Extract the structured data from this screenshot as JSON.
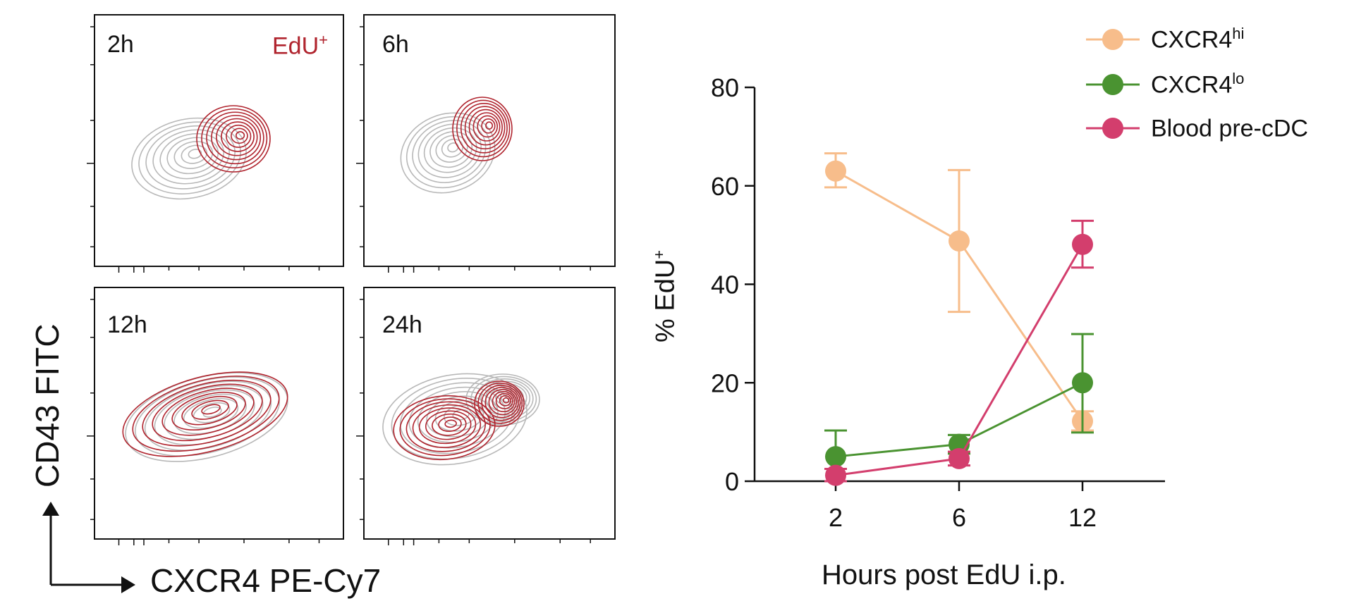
{
  "flow": {
    "panels": [
      {
        "label": "2h",
        "edu_label": "EdU+"
      },
      {
        "label": "6h",
        "edu_label": ""
      },
      {
        "label": "12h",
        "edu_label": ""
      },
      {
        "label": "24h",
        "edu_label": ""
      }
    ],
    "y_axis_title": "CD43 FITC",
    "x_axis_title": "CXCR4 PE-Cy7",
    "colors": {
      "gray_population": "#b8b8b8",
      "edu_population": "#b0242e"
    }
  },
  "chart_data": {
    "type": "line",
    "x": [
      2,
      6,
      12
    ],
    "x_tick_labels": [
      "2",
      "6",
      "12"
    ],
    "xlabel": "Hours post EdU i.p.",
    "ylabel": "% EdU",
    "ylabel_superscript": "+",
    "ylim": [
      0,
      80
    ],
    "y_ticks": [
      0,
      20,
      40,
      60,
      80
    ],
    "legend_position": "top-right",
    "series": [
      {
        "name": "CXCR4",
        "name_superscript": "hi",
        "color": "#f7bd8b",
        "values": [
          63,
          48.8,
          12.2
        ],
        "error_low": [
          59.7,
          34.4,
          10.3
        ],
        "error_high": [
          66.6,
          63.2,
          14.2
        ]
      },
      {
        "name": "CXCR4",
        "name_superscript": "lo",
        "color": "#4a9331",
        "values": [
          5,
          7.5,
          20
        ],
        "error_low": [
          0,
          5.6,
          9.9
        ],
        "error_high": [
          10.3,
          9.4,
          29.9
        ]
      },
      {
        "name": "Blood pre-cDC",
        "name_superscript": "",
        "color": "#d33e6d",
        "values": [
          1.2,
          4.6,
          48.1
        ],
        "error_low": [
          0,
          3.2,
          43.4
        ],
        "error_high": [
          2.5,
          6.0,
          52.9
        ]
      }
    ]
  }
}
